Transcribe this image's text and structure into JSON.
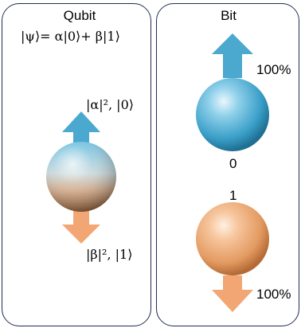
{
  "qubit": {
    "title": "Qubit",
    "state_equation": "|ψ⟩= α|0⟩+ β|1⟩",
    "up_label": "|α|², |0⟩",
    "down_label": "|β|², |1⟩"
  },
  "bit": {
    "title": "Bit",
    "top_percent": "100%",
    "zero_label": "0",
    "one_label": "1",
    "bottom_percent": "100%"
  },
  "colors": {
    "arrow_up": "#4ba8cf",
    "arrow_down": "#f2a674",
    "sphere_blue": "#3fa3cc",
    "sphere_orange": "#e9a66f",
    "border": "#1f2d52"
  }
}
